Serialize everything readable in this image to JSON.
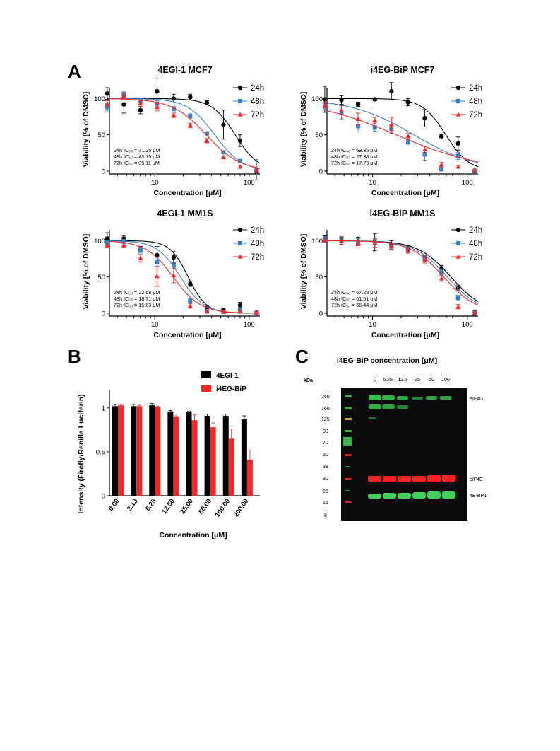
{
  "panel_labels": {
    "A": "A",
    "B": "B",
    "C": "C"
  },
  "colors": {
    "h24": "#000000",
    "h48": "#3a7fc6",
    "h72": "#f02828",
    "bar1": "#000000",
    "bar2": "#f02828"
  },
  "chart_data": [
    {
      "type": "scatter",
      "title": "4EGI-1 MCF7",
      "xlabel": "Concentration [μM]",
      "ylabel": "Viability [% of DMSO]",
      "xscale": "log",
      "xlim": [
        3.3,
        130
      ],
      "ylim": [
        0,
        115
      ],
      "xticks": [
        10,
        100
      ],
      "yticks": [
        0,
        50,
        100
      ],
      "legend_position": "top-right",
      "ic50_text": [
        "24h IC₅₀ = 71.25 μM",
        "48h IC₅₀ = 43.15 μM",
        "72h IC₅₀ = 35.11 μM"
      ],
      "series": [
        {
          "name": "24h",
          "color": "#000000",
          "marker": "circle",
          "ic50": 71.25,
          "hill": 3.5,
          "x": [
            3.13,
            4.69,
            7.03,
            10.55,
            15.82,
            23.73,
            35.6,
            53.4,
            80.1,
            120.1
          ],
          "y": [
            107,
            92,
            84,
            110,
            100,
            102,
            94,
            64,
            42,
            0
          ],
          "err": [
            8,
            12,
            5,
            18,
            6,
            4,
            3,
            20,
            8,
            3
          ]
        },
        {
          "name": "48h",
          "color": "#3a7fc6",
          "marker": "square",
          "ic50": 43.15,
          "hill": 3.0,
          "x": [
            3.13,
            4.69,
            7.03,
            10.55,
            15.82,
            23.73,
            35.6,
            53.4,
            80.1,
            120.1
          ],
          "y": [
            88,
            106,
            98,
            93,
            86,
            76,
            52,
            26,
            14,
            2
          ],
          "err": [
            5,
            4,
            3,
            4,
            3,
            3,
            2,
            2,
            2,
            14
          ]
        },
        {
          "name": "72h",
          "color": "#f02828",
          "marker": "triangle",
          "ic50": 35.11,
          "hill": 2.4,
          "x": [
            3.13,
            4.69,
            7.03,
            10.55,
            15.82,
            23.73,
            35.6,
            53.4,
            80.1,
            120.1
          ],
          "y": [
            93,
            104,
            93,
            88,
            77,
            63,
            42,
            19,
            6,
            1
          ],
          "err": [
            4,
            4,
            4,
            5,
            3,
            3,
            3,
            2,
            2,
            2
          ]
        }
      ]
    },
    {
      "type": "scatter",
      "title": "i4EG-BiP MCF7",
      "xlabel": "Concentration [μM]",
      "ylabel": "Viability [% of DMSO]",
      "xscale": "log",
      "xlim": [
        3.3,
        130
      ],
      "ylim": [
        0,
        115
      ],
      "xticks": [
        10,
        100
      ],
      "yticks": [
        0,
        50,
        100
      ],
      "legend_position": "top-right",
      "ic50_text": [
        "24h IC₅₀ = 59.35 μM",
        "48h IC₅₀ = 27.38 μM",
        "72h IC₅₀ = 17.79 μM"
      ],
      "series": [
        {
          "name": "24h",
          "color": "#000000",
          "marker": "circle",
          "ic50": 59.35,
          "hill": 3.5,
          "x": [
            3.13,
            4.69,
            7.03,
            10.55,
            15.82,
            23.73,
            35.6,
            53.4,
            80.1,
            120.1
          ],
          "y": [
            99,
            98,
            92,
            99,
            110,
            95,
            73,
            48,
            38,
            0
          ],
          "err": [
            18,
            6,
            3,
            2,
            12,
            5,
            12,
            2,
            9,
            2
          ]
        },
        {
          "name": "48h",
          "color": "#3a7fc6",
          "marker": "square",
          "ic50": 27.38,
          "hill": 1.3,
          "x": [
            3.13,
            4.69,
            7.03,
            10.55,
            15.82,
            23.73,
            35.6,
            53.4,
            80.1,
            120.1
          ],
          "y": [
            89,
            80,
            62,
            60,
            58,
            40,
            23,
            3,
            21,
            0
          ],
          "err": [
            4,
            8,
            8,
            5,
            6,
            3,
            8,
            3,
            5,
            2
          ]
        },
        {
          "name": "72h",
          "color": "#f02828",
          "marker": "triangle",
          "ic50": 17.79,
          "hill": 0.95,
          "x": [
            3.13,
            4.69,
            7.03,
            10.55,
            15.82,
            23.73,
            35.6,
            53.4,
            80.1,
            120.1
          ],
          "y": [
            91,
            84,
            72,
            70,
            64,
            48,
            30,
            9,
            6,
            1
          ],
          "err": [
            4,
            6,
            8,
            4,
            10,
            4,
            4,
            3,
            2,
            2
          ]
        }
      ]
    },
    {
      "type": "scatter",
      "title": "4EGI-1 MM1S",
      "xlabel": "Concentration [μM]",
      "ylabel": "Viability [% of DMSO]",
      "xscale": "log",
      "xlim": [
        3.3,
        130
      ],
      "ylim": [
        0,
        115
      ],
      "xticks": [
        10,
        100
      ],
      "yticks": [
        0,
        50,
        100
      ],
      "legend_position": "top-right",
      "ic50_text": [
        "24h IC₅₀ = 22.58 μM",
        "48h IC₅₀ = 18.71 μM",
        "72h IC₅₀ = 15.63 μM"
      ],
      "series": [
        {
          "name": "24h",
          "color": "#000000",
          "marker": "circle",
          "ic50": 22.58,
          "hill": 4.5,
          "x": [
            3.13,
            4.69,
            7.03,
            10.55,
            15.82,
            23.73,
            35.6,
            53.4,
            80.1,
            120.1
          ],
          "y": [
            103,
            103,
            89,
            80,
            77,
            40,
            8,
            4,
            11,
            1
          ],
          "err": [
            8,
            4,
            3,
            12,
            8,
            3,
            3,
            2,
            4,
            2
          ]
        },
        {
          "name": "48h",
          "color": "#3a7fc6",
          "marker": "square",
          "ic50": 18.71,
          "hill": 3.5,
          "x": [
            3.13,
            4.69,
            7.03,
            10.55,
            15.82,
            23.73,
            35.6,
            53.4,
            80.1,
            120.1
          ],
          "y": [
            97,
            99,
            87,
            71,
            66,
            17,
            3,
            2,
            5,
            0
          ],
          "err": [
            3,
            3,
            4,
            6,
            4,
            3,
            2,
            2,
            3,
            2
          ]
        },
        {
          "name": "72h",
          "color": "#f02828",
          "marker": "triangle",
          "ic50": 15.63,
          "hill": 3.0,
          "x": [
            3.13,
            4.69,
            7.03,
            10.55,
            15.82,
            23.73,
            35.6,
            53.4,
            80.1,
            120.1
          ],
          "y": [
            94,
            94,
            76,
            51,
            52,
            10,
            2,
            2,
            2,
            1
          ],
          "err": [
            3,
            3,
            5,
            14,
            10,
            3,
            2,
            2,
            2,
            2
          ]
        }
      ]
    },
    {
      "type": "scatter",
      "title": "i4EG-BiP MM1S",
      "xlabel": "Concentration [μM]",
      "ylabel": "Viability [% of DMSO]",
      "xscale": "log",
      "xlim": [
        3.3,
        130
      ],
      "ylim": [
        0,
        115
      ],
      "xticks": [
        10,
        100
      ],
      "yticks": [
        0,
        50,
        100
      ],
      "legend_position": "top-right",
      "ic50_text": [
        "24h IC₅₀ = 67.28 μM",
        "48h IC₅₀ = 61.51 μM",
        "72h IC₅₀ = 56.44 μM"
      ],
      "series": [
        {
          "name": "24h",
          "color": "#000000",
          "marker": "circle",
          "ic50": 67.28,
          "hill": 2.5,
          "x": [
            3.13,
            4.69,
            7.03,
            10.55,
            15.82,
            23.73,
            35.6,
            53.4,
            80.1,
            120.1
          ],
          "y": [
            104,
            100,
            99,
            98,
            94,
            89,
            77,
            62,
            35,
            1
          ],
          "err": [
            3,
            5,
            6,
            12,
            6,
            4,
            3,
            4,
            4,
            3
          ]
        },
        {
          "name": "48h",
          "color": "#3a7fc6",
          "marker": "square",
          "ic50": 61.51,
          "hill": 2.5,
          "x": [
            3.13,
            4.69,
            7.03,
            10.55,
            15.82,
            23.73,
            35.6,
            53.4,
            80.1,
            120.1
          ],
          "y": [
            103,
            100,
            98,
            97,
            92,
            87,
            75,
            57,
            21,
            0
          ],
          "err": [
            3,
            6,
            5,
            6,
            5,
            3,
            4,
            4,
            4,
            3
          ]
        },
        {
          "name": "72h",
          "color": "#f02828",
          "marker": "triangle",
          "ic50": 56.44,
          "hill": 2.5,
          "x": [
            3.13,
            4.69,
            7.03,
            10.55,
            15.82,
            23.73,
            35.6,
            53.4,
            80.1,
            120.1
          ],
          "y": [
            101,
            99,
            97,
            96,
            92,
            86,
            73,
            48,
            9,
            0
          ],
          "err": [
            3,
            4,
            4,
            6,
            4,
            3,
            4,
            4,
            3,
            2
          ]
        }
      ]
    },
    {
      "type": "bar",
      "title": "",
      "xlabel": "Concentration [μM]",
      "ylabel": "Intensity (Firefly/Renilla Luciferin)",
      "ylim": [
        0,
        1.2
      ],
      "yticks": [
        0.0,
        0.5,
        1.0
      ],
      "categories": [
        "0.00",
        "3.13",
        "6.25",
        "12.50",
        "25.00",
        "50.00",
        "100.00",
        "200.00"
      ],
      "legend_position": "top-right",
      "series": [
        {
          "name": "4EGI-1",
          "color": "#000000",
          "values": [
            1.02,
            1.02,
            1.03,
            0.96,
            0.95,
            0.91,
            0.91,
            0.87
          ],
          "err": [
            0.02,
            0.02,
            0.02,
            0.01,
            0.01,
            0.02,
            0.02,
            0.04
          ]
        },
        {
          "name": "i4EG-BiP",
          "color": "#f02828",
          "values": [
            1.03,
            1.02,
            1.01,
            0.9,
            0.86,
            0.78,
            0.65,
            0.41
          ],
          "err": [
            0.01,
            0.01,
            0.01,
            0.01,
            0.06,
            0.05,
            0.11,
            0.11
          ]
        }
      ]
    }
  ],
  "blot": {
    "title": "i4EG-BiP concentration [μM]",
    "kda_label": "kDa",
    "lane_labels": [
      "0",
      "6.25",
      "12.5",
      "25",
      "50",
      "100"
    ],
    "ladder": [
      "260",
      "160",
      "125",
      "90",
      "70",
      "50",
      "38",
      "30",
      "25",
      "15",
      "8"
    ],
    "proteins": [
      "eIF4G",
      "eIF4E",
      "4E-BP1"
    ]
  }
}
